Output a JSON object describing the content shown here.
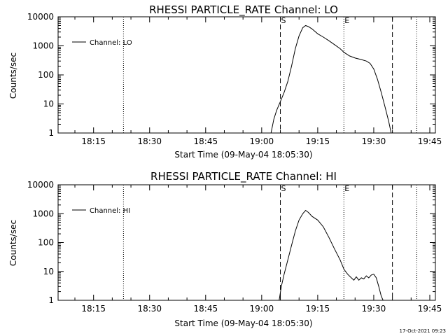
{
  "footer": {
    "timestamp": "17-Oct-2021 09:23"
  },
  "chart_data": [
    {
      "type": "line",
      "title": "RHESSI PARTICLE_RATE Channel: LO",
      "xlabel": "Start Time (09-May-04 18:05:30)",
      "ylabel": "Counts/sec",
      "yscale": "log",
      "xlim": [
        "18:05:30",
        "19:46:30"
      ],
      "ylim": [
        1,
        10000
      ],
      "x_ticks": [
        "18:15",
        "18:30",
        "18:45",
        "19:00",
        "19:15",
        "19:30",
        "19:45"
      ],
      "y_ticks": [
        "1",
        "10",
        "100",
        "1000",
        "10000"
      ],
      "legend": {
        "position": "top-left"
      },
      "markers": [
        {
          "time": "18:23:00",
          "style": "dotted",
          "label": ""
        },
        {
          "time": "19:05:00",
          "style": "dashed",
          "label": "S"
        },
        {
          "time": "19:22:00",
          "style": "dotted",
          "label": "E"
        },
        {
          "time": "19:35:00",
          "style": "dashed",
          "label": ""
        },
        {
          "time": "19:41:30",
          "style": "dotted",
          "label": ""
        }
      ],
      "series": [
        {
          "name": "Channel: LO",
          "points": [
            [
              "19:02:30",
              1
            ],
            [
              "19:03:15",
              3
            ],
            [
              "19:04:00",
              6
            ],
            [
              "19:05:00",
              12
            ],
            [
              "19:06:00",
              25
            ],
            [
              "19:07:00",
              60
            ],
            [
              "19:08:00",
              200
            ],
            [
              "19:09:00",
              800
            ],
            [
              "19:10:00",
              2200
            ],
            [
              "19:11:00",
              4200
            ],
            [
              "19:11:45",
              5000
            ],
            [
              "19:12:30",
              4600
            ],
            [
              "19:13:30",
              3800
            ],
            [
              "19:15:00",
              2600
            ],
            [
              "19:16:30",
              2000
            ],
            [
              "19:18:00",
              1500
            ],
            [
              "19:19:30",
              1100
            ],
            [
              "19:21:00",
              800
            ],
            [
              "19:22:00",
              600
            ],
            [
              "19:23:30",
              450
            ],
            [
              "19:25:00",
              380
            ],
            [
              "19:26:30",
              340
            ],
            [
              "19:28:00",
              300
            ],
            [
              "19:29:00",
              250
            ],
            [
              "19:30:00",
              160
            ],
            [
              "19:31:00",
              70
            ],
            [
              "19:32:00",
              25
            ],
            [
              "19:33:00",
              8
            ],
            [
              "19:34:00",
              2.5
            ],
            [
              "19:34:40",
              1
            ]
          ]
        }
      ]
    },
    {
      "type": "line",
      "title": "RHESSI PARTICLE_RATE Channel: HI",
      "xlabel": "Start Time (09-May-04 18:05:30)",
      "ylabel": "Counts/sec",
      "yscale": "log",
      "xlim": [
        "18:05:30",
        "19:46:30"
      ],
      "ylim": [
        1,
        10000
      ],
      "x_ticks": [
        "18:15",
        "18:30",
        "18:45",
        "19:00",
        "19:15",
        "19:30",
        "19:45"
      ],
      "y_ticks": [
        "1",
        "10",
        "100",
        "1000",
        "10000"
      ],
      "legend": {
        "position": "top-left"
      },
      "markers": [
        {
          "time": "18:23:00",
          "style": "dotted",
          "label": ""
        },
        {
          "time": "19:05:00",
          "style": "dashed",
          "label": "S"
        },
        {
          "time": "19:22:00",
          "style": "dotted",
          "label": "E"
        },
        {
          "time": "19:35:00",
          "style": "dashed",
          "label": ""
        },
        {
          "time": "19:41:30",
          "style": "dotted",
          "label": ""
        }
      ],
      "series": [
        {
          "name": "Channel: HI",
          "points": [
            [
              "19:04:40",
              1
            ],
            [
              "19:05:15",
              3
            ],
            [
              "19:06:00",
              8
            ],
            [
              "19:07:00",
              25
            ],
            [
              "19:08:00",
              80
            ],
            [
              "19:09:00",
              250
            ],
            [
              "19:10:00",
              600
            ],
            [
              "19:11:00",
              1000
            ],
            [
              "19:11:45",
              1300
            ],
            [
              "19:12:30",
              1100
            ],
            [
              "19:13:30",
              800
            ],
            [
              "19:15:00",
              600
            ],
            [
              "19:16:30",
              350
            ],
            [
              "19:18:00",
              150
            ],
            [
              "19:19:30",
              60
            ],
            [
              "19:21:00",
              25
            ],
            [
              "19:22:00",
              12
            ],
            [
              "19:23:00",
              8
            ],
            [
              "19:24:00",
              6
            ],
            [
              "19:24:40",
              5
            ],
            [
              "19:25:20",
              6.5
            ],
            [
              "19:26:00",
              5
            ],
            [
              "19:26:40",
              6
            ],
            [
              "19:27:20",
              5.5
            ],
            [
              "19:28:00",
              7
            ],
            [
              "19:28:40",
              6
            ],
            [
              "19:29:20",
              7.5
            ],
            [
              "19:30:00",
              8
            ],
            [
              "19:30:40",
              6
            ],
            [
              "19:31:20",
              3
            ],
            [
              "19:32:00",
              1.4
            ],
            [
              "19:32:30",
              1
            ]
          ]
        }
      ]
    }
  ]
}
